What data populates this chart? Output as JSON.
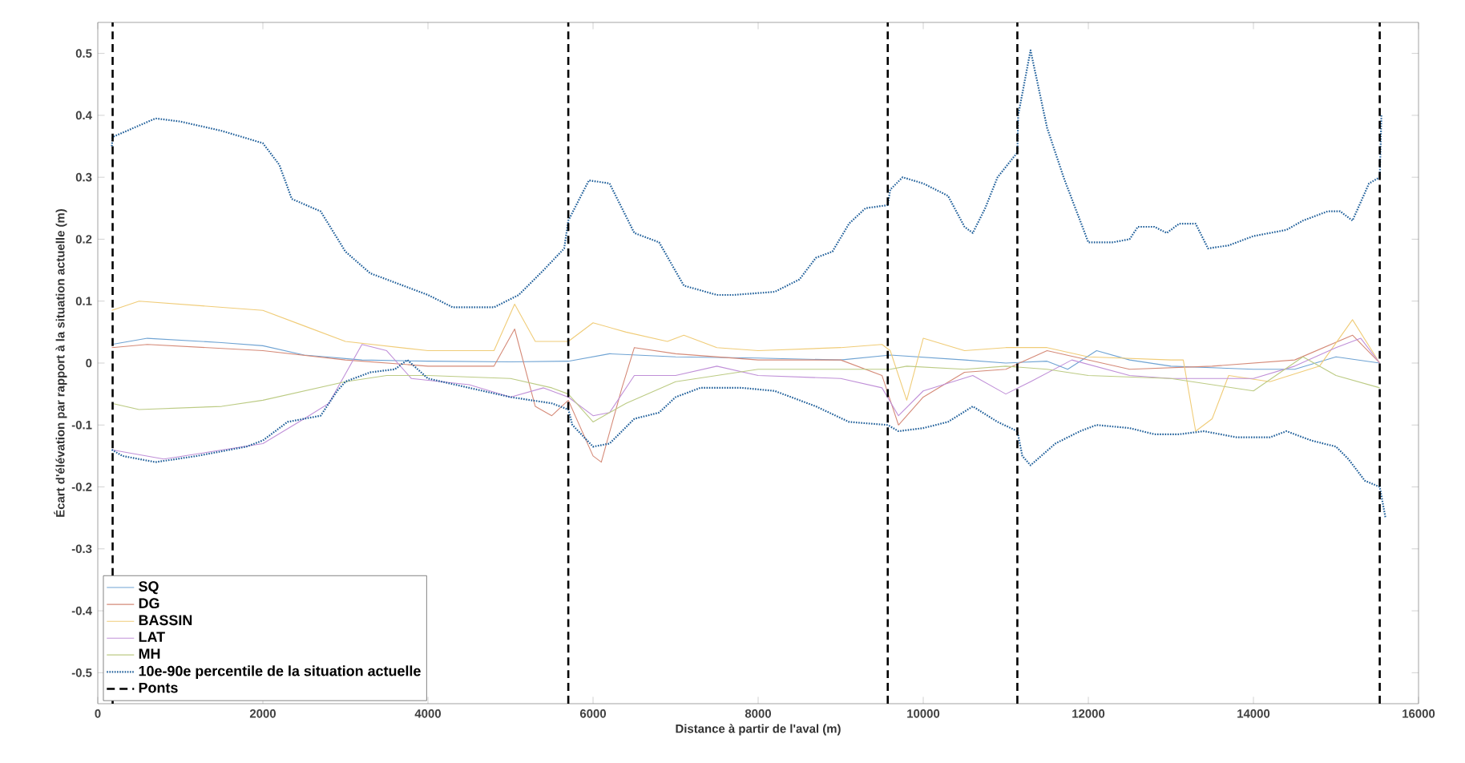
{
  "chart_data": {
    "type": "line",
    "xlabel": "Distance à partir de l'aval (m)",
    "ylabel": "Écart d'élévation par rapport à la situation actuelle (m)",
    "xlim": [
      0,
      16000
    ],
    "xticks": [
      0,
      2000,
      4000,
      6000,
      8000,
      10000,
      12000,
      14000,
      16000
    ],
    "ylim": [
      -0.55,
      0.55
    ],
    "yticks": [
      -0.5,
      -0.4,
      -0.3,
      -0.2,
      -0.1,
      0,
      0.1,
      0.2,
      0.3,
      0.4,
      0.5
    ],
    "legend": "bottom left",
    "marker": "none",
    "series": [
      {
        "name": "SQ",
        "color": "#6fa3d3",
        "line_style": "solid",
        "x": [
          170,
          600,
          1500,
          2000,
          2500,
          3200,
          4000,
          5000,
          5700,
          6200,
          7000,
          8000,
          9000,
          9600,
          10500,
          11000,
          11500,
          11750,
          12100,
          12500,
          13000,
          14000,
          14500,
          15000,
          15530
        ],
        "values": [
          0.03,
          0.04,
          0.033,
          0.028,
          0.013,
          0.005,
          0.003,
          0.002,
          0.003,
          0.015,
          0.01,
          0.008,
          0.005,
          0.013,
          0.005,
          0,
          0.003,
          -0.01,
          0.02,
          0.005,
          -0.005,
          -0.01,
          -0.01,
          0.01,
          0
        ]
      },
      {
        "name": "DG",
        "color": "#d58a78",
        "line_style": "solid",
        "x": [
          170,
          600,
          2000,
          3000,
          4000,
          4800,
          5050,
          5300,
          5500,
          5700,
          6000,
          6100,
          6350,
          6500,
          7000,
          8000,
          9000,
          9500,
          9700,
          10000,
          10500,
          11000,
          11500,
          12500,
          13500,
          14500,
          15200,
          15530
        ],
        "values": [
          0.025,
          0.03,
          0.02,
          0.005,
          -0.005,
          -0.005,
          0.055,
          -0.07,
          -0.085,
          -0.06,
          -0.15,
          -0.16,
          -0.04,
          0.025,
          0.015,
          0.005,
          0.005,
          -0.02,
          -0.1,
          -0.055,
          -0.015,
          -0.01,
          0.02,
          -0.01,
          -0.005,
          0.005,
          0.045,
          0
        ]
      },
      {
        "name": "BASSIN",
        "color": "#f0cc78",
        "line_style": "solid",
        "x": [
          170,
          500,
          2000,
          2500,
          3000,
          4000,
          4800,
          5050,
          5300,
          5700,
          6000,
          6400,
          6900,
          7100,
          7500,
          8000,
          9000,
          9500,
          9600,
          9800,
          10000,
          10500,
          11000,
          11500,
          12000,
          13000,
          13150,
          13300,
          13500,
          13700,
          14200,
          14800,
          15200,
          15530
        ],
        "values": [
          0.085,
          0.1,
          0.085,
          0.06,
          0.035,
          0.02,
          0.02,
          0.095,
          0.035,
          0.035,
          0.065,
          0.05,
          0.035,
          0.045,
          0.025,
          0.02,
          0.025,
          0.03,
          0.02,
          -0.06,
          0.04,
          0.02,
          0.025,
          0.025,
          0.01,
          0.005,
          0.005,
          -0.11,
          -0.09,
          -0.02,
          -0.03,
          -0.005,
          0.07,
          0
        ]
      },
      {
        "name": "LAT",
        "color": "#c090d8",
        "line_style": "solid",
        "x": [
          170,
          800,
          2000,
          2500,
          2800,
          3200,
          3500,
          3800,
          4500,
          5000,
          5400,
          5700,
          6000,
          6200,
          6500,
          7000,
          7500,
          8000,
          9000,
          9500,
          9700,
          10000,
          10600,
          11000,
          11300,
          11800,
          12500,
          13000,
          14000,
          14500,
          15000,
          15300,
          15530
        ],
        "values": [
          -0.14,
          -0.155,
          -0.13,
          -0.09,
          -0.065,
          0.03,
          0.02,
          -0.025,
          -0.035,
          -0.055,
          -0.04,
          -0.055,
          -0.085,
          -0.08,
          -0.02,
          -0.02,
          -0.005,
          -0.02,
          -0.025,
          -0.04,
          -0.085,
          -0.045,
          -0.02,
          -0.05,
          -0.03,
          0.005,
          -0.02,
          -0.025,
          -0.025,
          -0.005,
          0.025,
          0.04,
          0
        ]
      },
      {
        "name": "MH",
        "color": "#bccb84",
        "line_style": "solid",
        "x": [
          170,
          500,
          1500,
          2000,
          3000,
          3500,
          4000,
          5000,
          5500,
          5700,
          6000,
          6400,
          7000,
          8000,
          9000,
          9600,
          9800,
          10500,
          11000,
          11500,
          12000,
          13000,
          14000,
          14600,
          15000,
          15530
        ],
        "values": [
          -0.065,
          -0.075,
          -0.07,
          -0.06,
          -0.03,
          -0.02,
          -0.02,
          -0.025,
          -0.04,
          -0.05,
          -0.095,
          -0.065,
          -0.03,
          -0.01,
          -0.01,
          -0.01,
          -0.005,
          -0.01,
          -0.005,
          -0.01,
          -0.02,
          -0.025,
          -0.045,
          0.01,
          -0.02,
          -0.04
        ]
      },
      {
        "name": "10e-90e percentile de la situation actuelle",
        "color": "#1f5f9a",
        "line_style": "dotted",
        "x": [
          170,
          180,
          700,
          1000,
          1500,
          2000,
          2200,
          2350,
          2700,
          3000,
          3300,
          3700,
          4000,
          4300,
          4800,
          5100,
          5400,
          5650,
          5700,
          5950,
          6200,
          6500,
          6800,
          7100,
          7500,
          7700,
          8200,
          8500,
          8700,
          8900,
          9100,
          9300,
          9570,
          9600,
          9750,
          10000,
          10300,
          10500,
          10600,
          10750,
          10900,
          11140,
          11150,
          11300,
          11500,
          11700,
          12000,
          12300,
          12500,
          12600,
          12800,
          12950,
          13100,
          13300,
          13450,
          13700,
          14000,
          14400,
          14600,
          14900,
          15050,
          15200,
          15400,
          15530,
          15550
        ],
        "values": [
          0.35,
          0.365,
          0.395,
          0.39,
          0.375,
          0.355,
          0.32,
          0.265,
          0.245,
          0.18,
          0.145,
          0.125,
          0.11,
          0.09,
          0.09,
          0.11,
          0.15,
          0.185,
          0.23,
          0.295,
          0.29,
          0.21,
          0.195,
          0.125,
          0.11,
          0.11,
          0.115,
          0.135,
          0.17,
          0.18,
          0.225,
          0.25,
          0.255,
          0.28,
          0.3,
          0.29,
          0.27,
          0.22,
          0.21,
          0.25,
          0.3,
          0.34,
          0.4,
          0.505,
          0.38,
          0.3,
          0.195,
          0.195,
          0.2,
          0.22,
          0.22,
          0.21,
          0.225,
          0.225,
          0.185,
          0.19,
          0.205,
          0.215,
          0.23,
          0.245,
          0.245,
          0.23,
          0.29,
          0.3,
          0.4
        ]
      },
      {
        "color": "#1f5f9a",
        "line_style": "dotted",
        "x": [
          170,
          300,
          700,
          1200,
          1800,
          2000,
          2300,
          2700,
          2900,
          3000,
          3300,
          3600,
          3750,
          4000,
          4500,
          5000,
          5500,
          5700,
          5750,
          6000,
          6200,
          6500,
          6800,
          7000,
          7300,
          7800,
          8200,
          8700,
          9100,
          9570,
          9700,
          10000,
          10300,
          10600,
          10900,
          11140,
          11200,
          11300,
          11600,
          11900,
          12100,
          12500,
          12800,
          13100,
          13400,
          13800,
          14200,
          14400,
          14700,
          15000,
          15150,
          15350,
          15530,
          15600
        ],
        "values": [
          -0.14,
          -0.15,
          -0.16,
          -0.15,
          -0.135,
          -0.125,
          -0.095,
          -0.085,
          -0.045,
          -0.03,
          -0.015,
          -0.01,
          0.005,
          -0.025,
          -0.04,
          -0.055,
          -0.065,
          -0.075,
          -0.1,
          -0.135,
          -0.13,
          -0.09,
          -0.08,
          -0.055,
          -0.04,
          -0.04,
          -0.045,
          -0.07,
          -0.095,
          -0.1,
          -0.11,
          -0.105,
          -0.095,
          -0.07,
          -0.095,
          -0.11,
          -0.15,
          -0.165,
          -0.13,
          -0.11,
          -0.1,
          -0.105,
          -0.115,
          -0.115,
          -0.11,
          -0.12,
          -0.12,
          -0.11,
          -0.125,
          -0.135,
          -0.155,
          -0.19,
          -0.2,
          -0.25
        ]
      }
    ],
    "ref_lines": [
      {
        "axis": "x",
        "value": 180,
        "label": "Ponts",
        "color": "#000000",
        "line_style": "dashed"
      },
      {
        "axis": "x",
        "value": 5700,
        "color": "#000000",
        "line_style": "dashed"
      },
      {
        "axis": "x",
        "value": 9570,
        "color": "#000000",
        "line_style": "dashed"
      },
      {
        "axis": "x",
        "value": 11140,
        "color": "#000000",
        "line_style": "dashed"
      },
      {
        "axis": "x",
        "value": 15530,
        "color": "#000000",
        "line_style": "dashed"
      }
    ]
  }
}
